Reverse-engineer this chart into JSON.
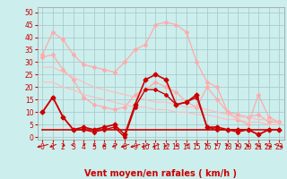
{
  "bg_color": "#cceeed",
  "grid_color": "#aacccc",
  "xlabel": "Vent moyen/en rafales ( km/h )",
  "xlabel_color": "#cc0000",
  "xlabel_fontsize": 7,
  "ylim": [
    -1,
    52
  ],
  "xlim": [
    -0.5,
    23.5
  ],
  "yticks": [
    0,
    5,
    10,
    15,
    20,
    25,
    30,
    35,
    40,
    45,
    50
  ],
  "xticks": [
    0,
    1,
    2,
    3,
    4,
    5,
    6,
    7,
    8,
    9,
    10,
    11,
    12,
    13,
    14,
    15,
    16,
    17,
    18,
    19,
    20,
    21,
    22,
    23
  ],
  "series": [
    {
      "x": [
        0,
        1,
        2,
        3,
        4,
        5,
        6,
        7,
        8,
        9,
        10,
        11,
        12,
        13,
        14,
        15,
        16,
        17,
        18,
        19,
        20,
        21,
        22,
        23
      ],
      "y": [
        33,
        42,
        39,
        33,
        29,
        28,
        27,
        26,
        30,
        35,
        37,
        45,
        46,
        45,
        42,
        30,
        22,
        20,
        10,
        9,
        8,
        9,
        6,
        6
      ],
      "color": "#ffaaaa",
      "lw": 0.9,
      "marker": "D",
      "ms": 2.0
    },
    {
      "x": [
        0,
        1,
        2,
        3,
        4,
        5,
        6,
        7,
        8,
        9,
        10,
        11,
        12,
        13,
        14,
        15,
        16,
        17,
        18,
        19,
        20,
        21,
        22,
        23
      ],
      "y": [
        32,
        33,
        27,
        23,
        16,
        13,
        12,
        11,
        12,
        17,
        19,
        22,
        20,
        18,
        14,
        12,
        20,
        15,
        10,
        7,
        5,
        17,
        8,
        6
      ],
      "color": "#ffaaaa",
      "lw": 0.9,
      "marker": "D",
      "ms": 2.0
    },
    {
      "x": [
        0,
        1,
        2,
        3,
        4,
        5,
        6,
        7,
        8,
        9,
        10,
        11,
        12,
        13,
        14,
        15,
        16,
        17,
        18,
        19,
        20,
        21,
        22,
        23
      ],
      "y": [
        28,
        28,
        26,
        24,
        22,
        20,
        19,
        18,
        17,
        16,
        15,
        14,
        14,
        13,
        12,
        12,
        11,
        10,
        9,
        8,
        8,
        7,
        7,
        6
      ],
      "color": "#ffbbbb",
      "lw": 0.8,
      "marker": null,
      "ms": 0
    },
    {
      "x": [
        0,
        1,
        2,
        3,
        4,
        5,
        6,
        7,
        8,
        9,
        10,
        11,
        12,
        13,
        14,
        15,
        16,
        17,
        18,
        19,
        20,
        21,
        22,
        23
      ],
      "y": [
        22,
        22,
        20,
        19,
        17,
        16,
        15,
        14,
        13,
        12,
        12,
        11,
        11,
        10,
        10,
        9,
        9,
        8,
        7,
        7,
        6,
        6,
        5,
        5
      ],
      "color": "#ffbbbb",
      "lw": 0.8,
      "marker": null,
      "ms": 0
    },
    {
      "x": [
        0,
        1,
        2,
        3,
        4,
        5,
        6,
        7,
        8,
        9,
        10,
        11,
        12,
        13,
        14,
        15,
        16,
        17,
        18,
        19,
        20,
        21,
        22,
        23
      ],
      "y": [
        10,
        16,
        8,
        3,
        4,
        3,
        4,
        5,
        1,
        13,
        23,
        25,
        23,
        13,
        14,
        17,
        4,
        4,
        3,
        3,
        3,
        1,
        3,
        3
      ],
      "color": "#cc0000",
      "lw": 1.2,
      "marker": "D",
      "ms": 2.5
    },
    {
      "x": [
        0,
        1,
        2,
        3,
        4,
        5,
        6,
        7,
        8,
        9,
        10,
        11,
        12,
        13,
        14,
        15,
        16,
        17,
        18,
        19,
        20,
        21,
        22,
        23
      ],
      "y": [
        10,
        16,
        8,
        3,
        3,
        2,
        3,
        4,
        0,
        12,
        19,
        19,
        17,
        13,
        14,
        16,
        4,
        3,
        3,
        2,
        3,
        1,
        3,
        3
      ],
      "color": "#cc0000",
      "lw": 1.0,
      "marker": "D",
      "ms": 2.0
    },
    {
      "x": [
        0,
        1,
        2,
        3,
        4,
        5,
        6,
        7,
        8,
        9,
        10,
        11,
        12,
        13,
        14,
        15,
        16,
        17,
        18,
        19,
        20,
        21,
        22,
        23
      ],
      "y": [
        3,
        3,
        3,
        3,
        3,
        3,
        3,
        3,
        3,
        3,
        3,
        3,
        3,
        3,
        3,
        3,
        3,
        3,
        3,
        3,
        3,
        3,
        3,
        3
      ],
      "color": "#cc0000",
      "lw": 1.2,
      "marker": null,
      "ms": 0
    }
  ],
  "tick_fontsize": 5.5,
  "tick_color": "#cc0000",
  "arrow_angles": [
    225,
    210,
    195,
    170,
    185,
    195,
    200,
    205,
    215,
    220,
    215,
    210,
    205,
    195,
    188,
    182,
    178,
    172,
    168,
    163,
    158,
    153,
    148,
    143
  ]
}
